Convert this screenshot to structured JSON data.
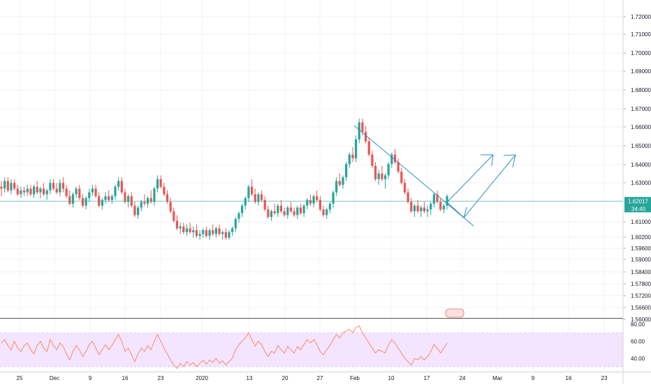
{
  "colors": {
    "up": "#26a69a",
    "down": "#ef5350",
    "grid": "#f0f3fa",
    "axis_text": "#131722",
    "price_line": "#26a69a",
    "price_tag_bg": "#26a69a",
    "drawing": "#2f8fbf",
    "rsi_line": "#ff7f50",
    "rsi_band": "#f3e5ff",
    "rsi_band_border": "#c7a9ff",
    "separator": "#555555"
  },
  "chart_data": {
    "type": "candlestick",
    "y_ticks": [
      "1.72000",
      "1.71000",
      "1.70000",
      "1.69000",
      "1.68000",
      "1.67000",
      "1.66000",
      "1.65000",
      "1.64000",
      "1.63000",
      "1.61000",
      "1.60200",
      "1.59600",
      "1.59000",
      "1.58400",
      "1.57800",
      "1.57200",
      "1.56600",
      "1.56000"
    ],
    "ylim": [
      1.556,
      1.72
    ],
    "x_ticks": [
      "25",
      "Dec",
      "9",
      "16",
      "23",
      "2020",
      "13",
      "20",
      "27",
      "Feb",
      "10",
      "17",
      "24",
      "Mar",
      "9",
      "16",
      "23"
    ],
    "current_price": "1.62017",
    "countdown": "34:40",
    "ohlc": [
      [
        1.625,
        1.628,
        1.62,
        1.624
      ],
      [
        1.624,
        1.63,
        1.622,
        1.628
      ],
      [
        1.628,
        1.63,
        1.622,
        1.623
      ],
      [
        1.623,
        1.629,
        1.621,
        1.627
      ],
      [
        1.627,
        1.629,
        1.623,
        1.624
      ],
      [
        1.624,
        1.626,
        1.62,
        1.621
      ],
      [
        1.621,
        1.625,
        1.619,
        1.623
      ],
      [
        1.623,
        1.625,
        1.62,
        1.622
      ],
      [
        1.622,
        1.626,
        1.62,
        1.624
      ],
      [
        1.624,
        1.626,
        1.62,
        1.621
      ],
      [
        1.621,
        1.626,
        1.619,
        1.625
      ],
      [
        1.625,
        1.628,
        1.621,
        1.622
      ],
      [
        1.622,
        1.625,
        1.619,
        1.624
      ],
      [
        1.624,
        1.627,
        1.62,
        1.621
      ],
      [
        1.621,
        1.624,
        1.618,
        1.623
      ],
      [
        1.623,
        1.629,
        1.621,
        1.627
      ],
      [
        1.627,
        1.629,
        1.623,
        1.624
      ],
      [
        1.624,
        1.627,
        1.621,
        1.622
      ],
      [
        1.622,
        1.629,
        1.62,
        1.627
      ],
      [
        1.627,
        1.63,
        1.622,
        1.624
      ],
      [
        1.624,
        1.626,
        1.619,
        1.62
      ],
      [
        1.62,
        1.623,
        1.615,
        1.616
      ],
      [
        1.616,
        1.622,
        1.614,
        1.621
      ],
      [
        1.621,
        1.625,
        1.619,
        1.624
      ],
      [
        1.624,
        1.626,
        1.618,
        1.619
      ],
      [
        1.619,
        1.621,
        1.614,
        1.615
      ],
      [
        1.615,
        1.62,
        1.613,
        1.619
      ],
      [
        1.619,
        1.624,
        1.617,
        1.622
      ],
      [
        1.622,
        1.626,
        1.62,
        1.624
      ],
      [
        1.624,
        1.626,
        1.619,
        1.62
      ],
      [
        1.62,
        1.622,
        1.614,
        1.615
      ],
      [
        1.615,
        1.619,
        1.613,
        1.618
      ],
      [
        1.618,
        1.622,
        1.616,
        1.62
      ],
      [
        1.62,
        1.623,
        1.617,
        1.618
      ],
      [
        1.618,
        1.621,
        1.616,
        1.62
      ],
      [
        1.62,
        1.626,
        1.618,
        1.625
      ],
      [
        1.625,
        1.63,
        1.623,
        1.628
      ],
      [
        1.628,
        1.63,
        1.621,
        1.622
      ],
      [
        1.622,
        1.624,
        1.616,
        1.617
      ],
      [
        1.617,
        1.621,
        1.614,
        1.62
      ],
      [
        1.62,
        1.622,
        1.614,
        1.615
      ],
      [
        1.615,
        1.617,
        1.609,
        1.61
      ],
      [
        1.61,
        1.615,
        1.608,
        1.614
      ],
      [
        1.614,
        1.618,
        1.612,
        1.617
      ],
      [
        1.617,
        1.621,
        1.615,
        1.616
      ],
      [
        1.616,
        1.62,
        1.614,
        1.619
      ],
      [
        1.619,
        1.623,
        1.616,
        1.617
      ],
      [
        1.617,
        1.625,
        1.615,
        1.624
      ],
      [
        1.624,
        1.631,
        1.622,
        1.629
      ],
      [
        1.629,
        1.631,
        1.624,
        1.625
      ],
      [
        1.625,
        1.627,
        1.62,
        1.621
      ],
      [
        1.621,
        1.623,
        1.616,
        1.617
      ],
      [
        1.617,
        1.619,
        1.611,
        1.612
      ],
      [
        1.612,
        1.614,
        1.606,
        1.607
      ],
      [
        1.607,
        1.61,
        1.602,
        1.603
      ],
      [
        1.603,
        1.606,
        1.6,
        1.604
      ],
      [
        1.604,
        1.606,
        1.6,
        1.601
      ],
      [
        1.601,
        1.605,
        1.599,
        1.603
      ],
      [
        1.603,
        1.606,
        1.6,
        1.601
      ],
      [
        1.601,
        1.604,
        1.598,
        1.602
      ],
      [
        1.602,
        1.605,
        1.598,
        1.599
      ],
      [
        1.599,
        1.602,
        1.597,
        1.6
      ],
      [
        1.6,
        1.603,
        1.598,
        1.602
      ],
      [
        1.602,
        1.604,
        1.598,
        1.599
      ],
      [
        1.599,
        1.603,
        1.597,
        1.602
      ],
      [
        1.602,
        1.605,
        1.599,
        1.6
      ],
      [
        1.6,
        1.604,
        1.598,
        1.603
      ],
      [
        1.603,
        1.605,
        1.599,
        1.6
      ],
      [
        1.6,
        1.602,
        1.597,
        1.601
      ],
      [
        1.601,
        1.603,
        1.597,
        1.598
      ],
      [
        1.598,
        1.602,
        1.597,
        1.601
      ],
      [
        1.601,
        1.604,
        1.599,
        1.603
      ],
      [
        1.603,
        1.609,
        1.601,
        1.608
      ],
      [
        1.608,
        1.612,
        1.606,
        1.611
      ],
      [
        1.611,
        1.616,
        1.609,
        1.615
      ],
      [
        1.615,
        1.62,
        1.613,
        1.619
      ],
      [
        1.619,
        1.626,
        1.617,
        1.625
      ],
      [
        1.625,
        1.629,
        1.62,
        1.621
      ],
      [
        1.621,
        1.624,
        1.616,
        1.617
      ],
      [
        1.617,
        1.622,
        1.615,
        1.621
      ],
      [
        1.621,
        1.623,
        1.617,
        1.618
      ],
      [
        1.618,
        1.62,
        1.612,
        1.613
      ],
      [
        1.613,
        1.615,
        1.608,
        1.609
      ],
      [
        1.609,
        1.613,
        1.607,
        1.612
      ],
      [
        1.612,
        1.616,
        1.61,
        1.611
      ],
      [
        1.611,
        1.616,
        1.609,
        1.615
      ],
      [
        1.615,
        1.618,
        1.611,
        1.612
      ],
      [
        1.612,
        1.614,
        1.609,
        1.61
      ],
      [
        1.61,
        1.615,
        1.608,
        1.614
      ],
      [
        1.614,
        1.617,
        1.611,
        1.612
      ],
      [
        1.612,
        1.614,
        1.609,
        1.61
      ],
      [
        1.61,
        1.615,
        1.608,
        1.614
      ],
      [
        1.614,
        1.616,
        1.61,
        1.611
      ],
      [
        1.611,
        1.616,
        1.609,
        1.615
      ],
      [
        1.615,
        1.619,
        1.613,
        1.618
      ],
      [
        1.618,
        1.621,
        1.615,
        1.616
      ],
      [
        1.616,
        1.621,
        1.614,
        1.62
      ],
      [
        1.62,
        1.623,
        1.617,
        1.618
      ],
      [
        1.618,
        1.62,
        1.612,
        1.613
      ],
      [
        1.613,
        1.615,
        1.609,
        1.61
      ],
      [
        1.61,
        1.614,
        1.608,
        1.613
      ],
      [
        1.613,
        1.617,
        1.611,
        1.616
      ],
      [
        1.616,
        1.623,
        1.614,
        1.622
      ],
      [
        1.622,
        1.63,
        1.62,
        1.628
      ],
      [
        1.628,
        1.632,
        1.625,
        1.626
      ],
      [
        1.626,
        1.631,
        1.624,
        1.63
      ],
      [
        1.63,
        1.638,
        1.628,
        1.637
      ],
      [
        1.637,
        1.643,
        1.635,
        1.642
      ],
      [
        1.642,
        1.646,
        1.638,
        1.64
      ],
      [
        1.64,
        1.652,
        1.638,
        1.65
      ],
      [
        1.65,
        1.661,
        1.648,
        1.659
      ],
      [
        1.659,
        1.661,
        1.652,
        1.654
      ],
      [
        1.654,
        1.657,
        1.648,
        1.649
      ],
      [
        1.649,
        1.651,
        1.641,
        1.642
      ],
      [
        1.642,
        1.644,
        1.635,
        1.636
      ],
      [
        1.636,
        1.638,
        1.628,
        1.629
      ],
      [
        1.629,
        1.634,
        1.626,
        1.632
      ],
      [
        1.632,
        1.636,
        1.628,
        1.629
      ],
      [
        1.629,
        1.632,
        1.624,
        1.631
      ],
      [
        1.631,
        1.638,
        1.629,
        1.637
      ],
      [
        1.637,
        1.643,
        1.635,
        1.642
      ],
      [
        1.642,
        1.645,
        1.637,
        1.638
      ],
      [
        1.638,
        1.64,
        1.632,
        1.633
      ],
      [
        1.633,
        1.635,
        1.626,
        1.627
      ],
      [
        1.627,
        1.629,
        1.621,
        1.622
      ],
      [
        1.622,
        1.624,
        1.616,
        1.617
      ],
      [
        1.617,
        1.619,
        1.611,
        1.612
      ],
      [
        1.612,
        1.616,
        1.609,
        1.615
      ],
      [
        1.615,
        1.618,
        1.611,
        1.612
      ],
      [
        1.612,
        1.615,
        1.609,
        1.614
      ],
      [
        1.614,
        1.617,
        1.611,
        1.612
      ],
      [
        1.612,
        1.615,
        1.609,
        1.613
      ],
      [
        1.613,
        1.617,
        1.61,
        1.616
      ],
      [
        1.616,
        1.622,
        1.614,
        1.621
      ],
      [
        1.621,
        1.623,
        1.616,
        1.617
      ],
      [
        1.617,
        1.619,
        1.612,
        1.613
      ],
      [
        1.613,
        1.616,
        1.611,
        1.615
      ],
      [
        1.615,
        1.621,
        1.613,
        1.62
      ]
    ],
    "rsi": {
      "levels": [
        "80.00",
        "60.00",
        "40.00"
      ],
      "ylim": [
        25,
        85
      ],
      "band": [
        30,
        70
      ],
      "values": [
        58,
        62,
        55,
        50,
        60,
        52,
        48,
        55,
        58,
        50,
        45,
        55,
        60,
        52,
        48,
        62,
        55,
        50,
        58,
        54,
        45,
        38,
        48,
        55,
        50,
        42,
        48,
        56,
        60,
        52,
        44,
        50,
        56,
        50,
        55,
        62,
        68,
        60,
        48,
        52,
        44,
        36,
        45,
        52,
        48,
        55,
        50,
        60,
        68,
        60,
        52,
        45,
        38,
        32,
        28,
        34,
        30,
        36,
        32,
        35,
        30,
        34,
        38,
        33,
        38,
        35,
        40,
        34,
        37,
        32,
        36,
        40,
        50,
        56,
        60,
        64,
        70,
        62,
        54,
        60,
        56,
        48,
        42,
        48,
        46,
        55,
        50,
        46,
        54,
        50,
        46,
        54,
        50,
        56,
        62,
        58,
        62,
        56,
        48,
        44,
        50,
        55,
        62,
        68,
        64,
        70,
        72,
        74,
        70,
        76,
        78,
        70,
        64,
        58,
        52,
        46,
        50,
        48,
        46,
        56,
        62,
        58,
        52,
        46,
        40,
        36,
        32,
        40,
        38,
        42,
        38,
        42,
        48,
        56,
        52,
        46,
        52,
        58
      ]
    }
  }
}
